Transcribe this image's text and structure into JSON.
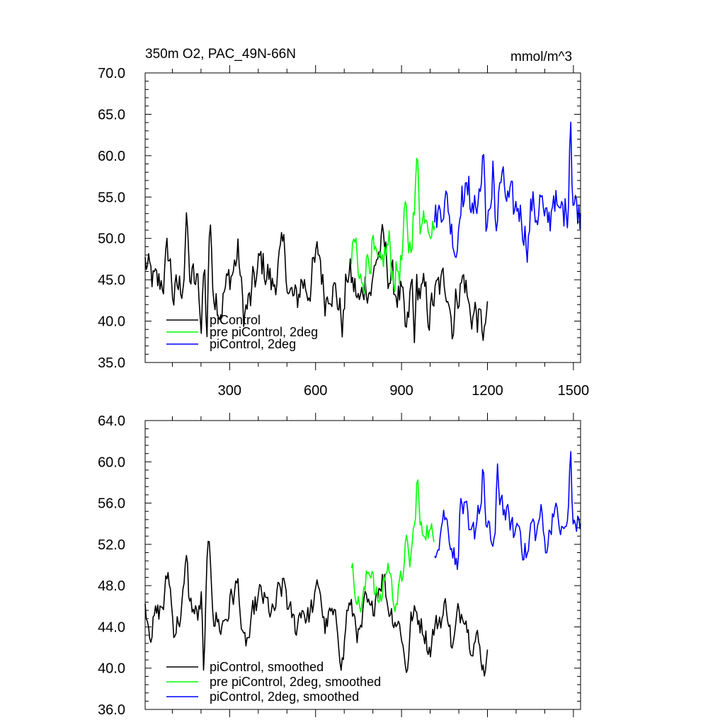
{
  "figure": {
    "title_left": "350m O2, PAC_49N-66N",
    "title_right": "mmol/m^3"
  },
  "chart_data": [
    {
      "type": "line",
      "panel": "top",
      "ylim": [
        35,
        70
      ],
      "y_ticks": [
        "35.0",
        "40.0",
        "45.0",
        "50.0",
        "55.0",
        "60.0",
        "65.0",
        "70.0"
      ],
      "xlim": [
        5,
        1525
      ],
      "x_ticks": [
        "300",
        "600",
        "900",
        "1200",
        "1500"
      ],
      "legend_position": "lower-left",
      "series": [
        {
          "name": "piControl",
          "color": "#000000",
          "x_start": 5,
          "x_end": 1200,
          "base": [
            47,
            45,
            44,
            45,
            48,
            43,
            44,
            47,
            45,
            44,
            46,
            51,
            44,
            42,
            44,
            46,
            48,
            41,
            42,
            45,
            47,
            46,
            44,
            47,
            48,
            43,
            42,
            45,
            44,
            46,
            48,
            43,
            45,
            43,
            40,
            46,
            44,
            42,
            45,
            44,
            48,
            49,
            46,
            44,
            43,
            38,
            44,
            44,
            43,
            41,
            43,
            44,
            45,
            40,
            44,
            45,
            41,
            41,
            39,
            40
          ],
          "spikes": [
            [
              150,
              53.7
            ],
            [
              200,
              37.8
            ],
            [
              220,
              36.6
            ],
            [
              945,
              37.4
            ],
            [
              1195,
              38.6
            ],
            [
              1200,
              42.4
            ]
          ]
        },
        {
          "name": "pre piControl, 2deg",
          "color": "#00ff00",
          "x_start": 725,
          "x_end": 1015,
          "base": [
            47,
            49,
            44,
            46,
            48,
            49,
            46,
            45,
            48,
            49,
            46,
            46,
            47,
            52,
            49,
            53,
            55,
            52,
            54,
            53,
            51
          ],
          "spikes": [
            [
              955,
              60.9
            ],
            [
              1015,
              51.5
            ]
          ]
        },
        {
          "name": "piControl, 2deg",
          "color": "#0000ff",
          "x_start": 1015,
          "x_end": 1525,
          "base": [
            52,
            53,
            55,
            54,
            51,
            49,
            56,
            55,
            52,
            53,
            56,
            55,
            52,
            51,
            52,
            57,
            55,
            54,
            53,
            54,
            52,
            50,
            54,
            53,
            55,
            51,
            52,
            56,
            53,
            53,
            54,
            55,
            54,
            53
          ],
          "spikes": [
            [
              1135,
              57.5
            ],
            [
              1185,
              61.7
            ],
            [
              1220,
              60.5
            ],
            [
              1450,
              53.5
            ],
            [
              1490,
              65.7
            ],
            [
              1500,
              54.0
            ]
          ]
        }
      ]
    },
    {
      "type": "line",
      "panel": "bottom",
      "ylim": [
        36,
        64
      ],
      "y_ticks": [
        "36.0",
        "40.0",
        "44.0",
        "48.0",
        "52.0",
        "56.0",
        "60.0",
        "64.0"
      ],
      "xlim": [
        5,
        1525
      ],
      "x_ticks": [
        "300",
        "600",
        "900",
        "1200",
        "1500"
      ],
      "legend_position": "lower-left",
      "series": [
        {
          "name": "piControl, smoothed",
          "color": "#000000",
          "x_start": 5,
          "x_end": 1200,
          "base": [
            46,
            44,
            45,
            46,
            49,
            44,
            45,
            48,
            46,
            45,
            47,
            51,
            45,
            44,
            45,
            47,
            48,
            42,
            43,
            46,
            47,
            46,
            45,
            47,
            48,
            45,
            44,
            46,
            45,
            46,
            48,
            44,
            45,
            44,
            41,
            46,
            45,
            43,
            46,
            45,
            48,
            49,
            46,
            45,
            44,
            40,
            45,
            45,
            44,
            42,
            44,
            45,
            46,
            42,
            45,
            46,
            43,
            43,
            41,
            41
          ],
          "spikes": [
            [
              150,
              51.4
            ],
            [
              210,
              38.6
            ],
            [
              1190,
              39.1
            ],
            [
              1200,
              41.8
            ]
          ]
        },
        {
          "name": "pre piControl, 2deg, smoothed",
          "color": "#00ff00",
          "x_start": 725,
          "x_end": 1015,
          "base": [
            49,
            48,
            46,
            47,
            49,
            50,
            47,
            46,
            49,
            50,
            47,
            47,
            48,
            52,
            50,
            53,
            55,
            53,
            54,
            53,
            52
          ],
          "spikes": [
            [
              955,
              59.1
            ],
            [
              1015,
              52.3
            ]
          ]
        },
        {
          "name": "piControl, 2deg, smoothed",
          "color": "#0000ff",
          "x_start": 1015,
          "x_end": 1525,
          "base": [
            52,
            53,
            55,
            54,
            52,
            50,
            56,
            55,
            52,
            53,
            56,
            55,
            53,
            52,
            53,
            57,
            55,
            54,
            53,
            54,
            52,
            51,
            54,
            53,
            55,
            52,
            53,
            56,
            54,
            53,
            54,
            55,
            54,
            54
          ],
          "spikes": [
            [
              1185,
              60.4
            ],
            [
              1235,
              59.8
            ],
            [
              1490,
              61.8
            ],
            [
              1500,
              54.0
            ]
          ]
        }
      ]
    }
  ]
}
